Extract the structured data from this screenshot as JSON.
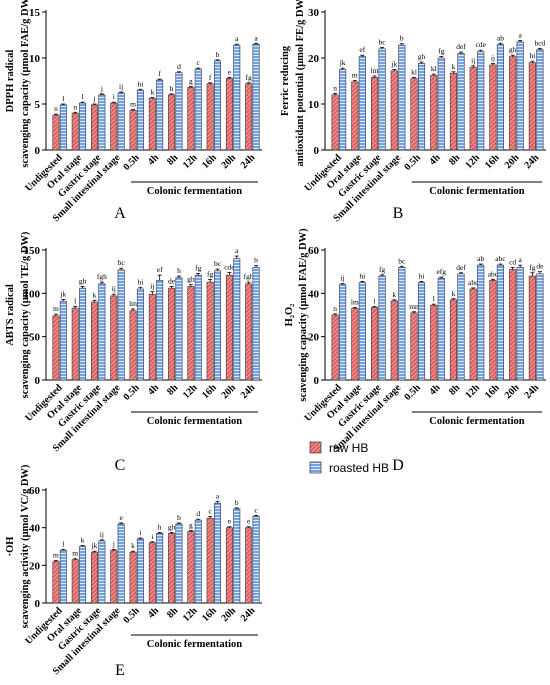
{
  "x_categories": [
    "Undigested",
    "Oral stage",
    "Gastric stage",
    "Small intestinal stage",
    "0.5h",
    "4h",
    "8h",
    "12h",
    "16h",
    "20h",
    "24h"
  ],
  "fermentation_label": "Colonic fermentation",
  "legend": {
    "raw_label": "raw HB",
    "roasted_label": "roasted HB"
  },
  "colors": {
    "raw": "#e06060",
    "roasted": "#6f9fe6"
  },
  "chart_data": [
    {
      "type": "bar",
      "panel_label": "A",
      "ylabel_lines": [
        "DPPH radical",
        "scavenging capacity (μmol FAE/g DW)"
      ],
      "ylim": [
        0,
        15
      ],
      "yticks": [
        0,
        5,
        10,
        15
      ],
      "categories": [
        "Undigested",
        "Oral stage",
        "Gastric stage",
        "Small intestinal stage",
        "0.5h",
        "4h",
        "8h",
        "12h",
        "16h",
        "20h",
        "24h"
      ],
      "series": [
        {
          "name": "raw HB",
          "values": [
            3.8,
            4.0,
            4.9,
            5.1,
            4.3,
            5.6,
            6.0,
            6.8,
            7.2,
            7.8,
            7.2
          ],
          "errors": [
            0.1,
            0.1,
            0.1,
            0.1,
            0.1,
            0.1,
            0.1,
            0.1,
            0.1,
            0.1,
            0.1
          ],
          "letters": [
            "n",
            "n",
            "j",
            "i",
            "m",
            "k",
            "h",
            "g",
            "f",
            "e",
            "fg"
          ]
        },
        {
          "name": "roasted HB",
          "values": [
            4.9,
            5.1,
            6.0,
            6.2,
            6.5,
            7.6,
            8.4,
            8.8,
            9.7,
            11.4,
            11.5
          ],
          "errors": [
            0.1,
            0.1,
            0.1,
            0.1,
            0.1,
            0.1,
            0.1,
            0.1,
            0.1,
            0.1,
            0.1
          ],
          "letters": [
            "l",
            "l",
            "j",
            "ij",
            "hi",
            "f",
            "d",
            "c",
            "b",
            "a",
            "a"
          ]
        }
      ]
    },
    {
      "type": "bar",
      "panel_label": "B",
      "ylabel_lines": [
        "Ferric reducing",
        "antioxidant potential (μmol FE/g DW)"
      ],
      "ylim": [
        0,
        30
      ],
      "yticks": [
        0,
        10,
        20,
        30
      ],
      "categories": [
        "Undigested",
        "Oral stage",
        "Gastric stage",
        "Small intestinal stage",
        "0.5h",
        "4h",
        "8h",
        "12h",
        "16h",
        "20h",
        "24h"
      ],
      "series": [
        {
          "name": "raw HB",
          "values": [
            12.0,
            14.8,
            15.8,
            17.2,
            15.5,
            16.2,
            16.7,
            18.0,
            18.5,
            20.3,
            19.0
          ],
          "errors": [
            0.3,
            0.3,
            0.3,
            0.3,
            0.3,
            0.3,
            0.3,
            0.3,
            0.3,
            0.3,
            0.3
          ],
          "letters": [
            "n",
            "m",
            "lm",
            "jk",
            "kl",
            "kl",
            "k",
            "ij",
            "ij",
            "gh",
            "hi"
          ]
        },
        {
          "name": "roasted HB",
          "values": [
            17.5,
            20.3,
            22.0,
            22.8,
            18.8,
            20.0,
            21.0,
            21.4,
            22.9,
            23.5,
            21.8
          ],
          "errors": [
            0.3,
            0.3,
            0.3,
            0.3,
            0.3,
            0.3,
            0.3,
            0.3,
            0.3,
            0.3,
            0.3
          ],
          "letters": [
            "jk",
            "ef",
            "bc",
            "b",
            "gh",
            "fg",
            "def",
            "cde",
            "ab",
            "a",
            "bcd"
          ]
        }
      ]
    },
    {
      "type": "bar",
      "panel_label": "C",
      "ylabel_lines": [
        "ABTS radical",
        "scavenging capacity (μmol TE/g DW)"
      ],
      "ylim": [
        0,
        150
      ],
      "yticks": [
        0,
        50,
        100,
        150
      ],
      "categories": [
        "Undigested",
        "Oral stage",
        "Gastric stage",
        "Small intestinal stage",
        "0.5h",
        "4h",
        "8h",
        "12h",
        "16h",
        "20h",
        "24h"
      ],
      "series": [
        {
          "name": "raw HB",
          "values": [
            74,
            83,
            90,
            97,
            80,
            99,
            106,
            108,
            113,
            121,
            111
          ],
          "errors": [
            2,
            2,
            2,
            2,
            2,
            3,
            2,
            2,
            3,
            3,
            2
          ],
          "letters": [
            "m",
            "l",
            "k",
            "ij",
            "lm",
            "ij",
            "de",
            "gh",
            "fg",
            "cde",
            "fgh"
          ]
        },
        {
          "name": "roasted HB",
          "values": [
            91,
            106,
            111,
            127,
            105,
            115,
            118,
            121,
            126,
            140,
            130
          ],
          "errors": [
            2,
            2,
            2,
            2,
            2,
            6,
            2,
            2,
            2,
            3,
            2
          ],
          "letters": [
            "jk",
            "gh",
            "fgh",
            "bc",
            "hi",
            "ef",
            "h",
            "fg",
            "bc",
            "a",
            "b"
          ]
        }
      ]
    },
    {
      "type": "bar",
      "panel_label": "D",
      "ylabel_lines": [
        "H₂O₂",
        "scavenging capacity (μmol FAE/g DW)"
      ],
      "ylim": [
        0,
        60
      ],
      "yticks": [
        0,
        20,
        40,
        60
      ],
      "categories": [
        "Undigested",
        "Oral stage",
        "Gastric stage",
        "Small intestinal stage",
        "0.5h",
        "4h",
        "8h",
        "12h",
        "16h",
        "20h",
        "24h"
      ],
      "series": [
        {
          "name": "raw HB",
          "values": [
            30,
            33,
            33.5,
            36.5,
            31,
            34.5,
            37,
            42,
            46,
            51,
            48
          ],
          "errors": [
            0.5,
            0.5,
            0.5,
            0.5,
            0.5,
            0.5,
            0.5,
            0.5,
            0.5,
            1,
            1.5
          ],
          "letters": [
            "n",
            "lm",
            "l",
            "k",
            "mn",
            "l",
            "k",
            "abc",
            "abc",
            "cd",
            "fg"
          ]
        },
        {
          "name": "roasted HB",
          "values": [
            44,
            45,
            48,
            52,
            45,
            47,
            49,
            53,
            53,
            52,
            49
          ],
          "errors": [
            0.5,
            0.5,
            0.5,
            0.5,
            0.5,
            0.5,
            0.5,
            0.5,
            0.5,
            1,
            1
          ],
          "letters": [
            "ij",
            "hi",
            "fg",
            "bc",
            "hi",
            "efg",
            "def",
            "ab",
            "abc",
            "a",
            "de"
          ]
        }
      ]
    },
    {
      "type": "bar",
      "panel_label": "E",
      "ylabel_lines": [
        "·OH",
        "scavenging activity (μmol VC/g DW)"
      ],
      "ylim": [
        0,
        60
      ],
      "yticks": [
        0,
        20,
        40,
        60
      ],
      "categories": [
        "Undigested",
        "Oral stage",
        "Gastric stage",
        "Small intestinal stage",
        "0.5h",
        "4h",
        "8h",
        "12h",
        "16h",
        "20h",
        "24h"
      ],
      "series": [
        {
          "name": "raw HB",
          "values": [
            22,
            23,
            27,
            28,
            27,
            32,
            37,
            38,
            45,
            40,
            40
          ],
          "errors": [
            0.5,
            0.5,
            0.5,
            0.5,
            0.5,
            0.5,
            0.5,
            0.5,
            1,
            0.5,
            0.5
          ],
          "letters": [
            "m",
            "m",
            "jk",
            "j",
            "k",
            "i",
            "gh",
            "g",
            "c",
            "e",
            "e"
          ]
        },
        {
          "name": "roasted HB",
          "values": [
            28,
            30,
            33,
            42,
            34,
            37,
            42,
            44,
            53,
            50,
            46
          ],
          "errors": [
            0.5,
            0.5,
            0.5,
            0.5,
            0.5,
            0.5,
            0.5,
            0.5,
            1,
            0.5,
            0.5
          ],
          "letters": [
            "l",
            "k",
            "ij",
            "e",
            "i",
            "h",
            "b",
            "d",
            "a",
            "b",
            "c"
          ]
        }
      ]
    }
  ]
}
